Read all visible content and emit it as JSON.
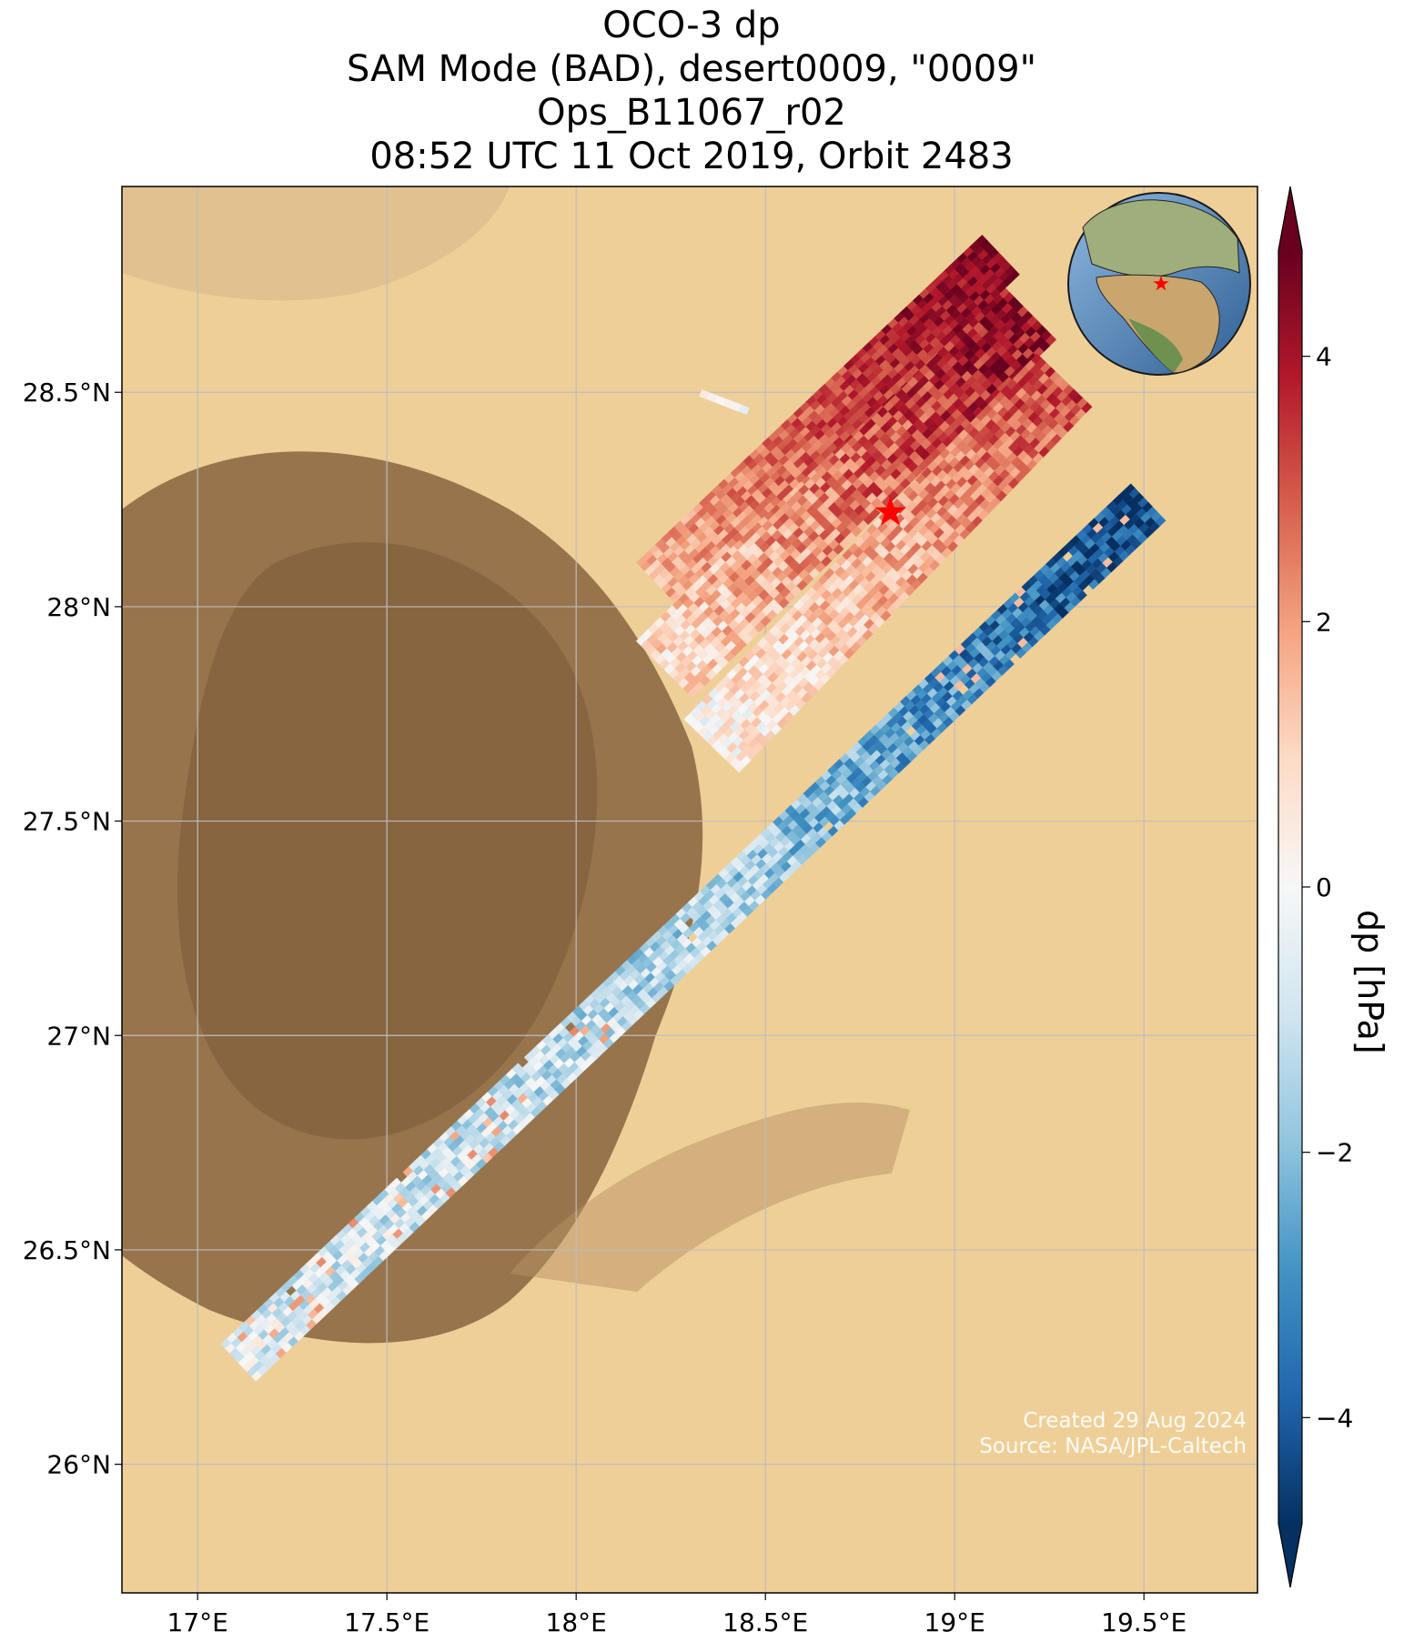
{
  "title": {
    "line1": "OCO-3 dp",
    "line2": "SAM Mode (BAD), desert0009, \"0009\"",
    "line3": "Ops_B11067_r02",
    "line4": "08:52 UTC 11 Oct 2019, Orbit 2483"
  },
  "map": {
    "lon_range": [
      16.8,
      19.8
    ],
    "lat_range": [
      25.7,
      28.98
    ],
    "lon_ticks": [
      {
        "value": 17.0,
        "label": "17°E"
      },
      {
        "value": 17.5,
        "label": "17.5°E"
      },
      {
        "value": 18.0,
        "label": "18°E"
      },
      {
        "value": 18.5,
        "label": "18.5°E"
      },
      {
        "value": 19.0,
        "label": "19°E"
      },
      {
        "value": 19.5,
        "label": "19.5°E"
      }
    ],
    "lat_ticks": [
      {
        "value": 26.0,
        "label": "26°N"
      },
      {
        "value": 26.5,
        "label": "26.5°N"
      },
      {
        "value": 27.0,
        "label": "27°N"
      },
      {
        "value": 27.5,
        "label": "27.5°N"
      },
      {
        "value": 28.0,
        "label": "28°N"
      },
      {
        "value": 28.5,
        "label": "28.5°N"
      }
    ],
    "grid": true,
    "target_marker": {
      "lon": 18.83,
      "lat": 28.22,
      "color": "#ff0000"
    },
    "inset_globe": {
      "position": "top-right",
      "marker_color": "#ff0000"
    }
  },
  "colorbar": {
    "label": "dp [hPa]",
    "range": [
      -4.8,
      4.8
    ],
    "extend": "both",
    "colormap": "RdBu_r",
    "ticks": [
      {
        "value": 4,
        "label": "4"
      },
      {
        "value": 2,
        "label": "2"
      },
      {
        "value": 0,
        "label": "0"
      },
      {
        "value": -2,
        "label": "−2"
      },
      {
        "value": -4,
        "label": "−4"
      }
    ]
  },
  "credits": {
    "created": "Created 29 Aug 2024",
    "source": "Source: NASA/JPL-Caltech"
  },
  "colors": {
    "desert_light": "#f2d3a0",
    "desert_dark": "#8f6b42",
    "sea": "#5b8fc7",
    "red_dark": "#67001f",
    "blue_dark": "#053061"
  }
}
